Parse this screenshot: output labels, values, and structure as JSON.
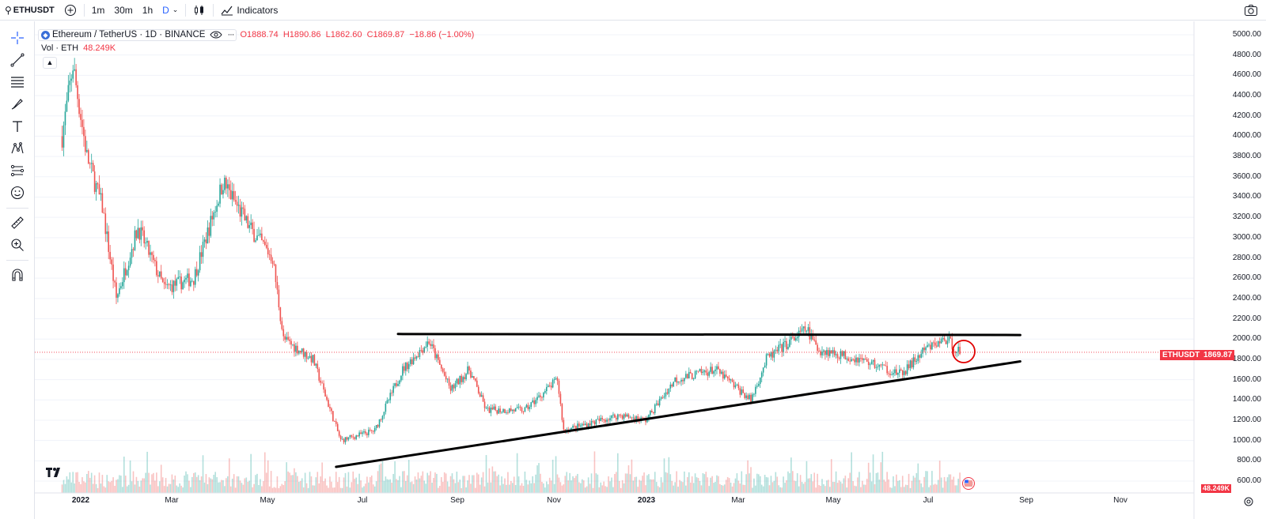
{
  "toolbar": {
    "symbol": "ETHUSDT",
    "intervals": [
      "1m",
      "30m",
      "1h",
      "D"
    ],
    "active_interval": "D",
    "indicators_label": "Indicators"
  },
  "legend": {
    "title": "Ethereum / TetherUS · 1D · BINANCE",
    "open": "O1888.74",
    "high": "H1890.86",
    "low": "L1862.60",
    "close": "C1869.87",
    "change": "−18.86 (−1.00%)",
    "vol_label": "Vol · ETH",
    "vol_value": "48.249K"
  },
  "price_axis": {
    "ticks": [
      "5000.00",
      "4800.00",
      "4600.00",
      "4400.00",
      "4200.00",
      "4000.00",
      "3800.00",
      "3600.00",
      "3400.00",
      "3200.00",
      "3000.00",
      "2800.00",
      "2600.00",
      "2400.00",
      "2200.00",
      "2000.00",
      "1800.00",
      "1600.00",
      "1400.00",
      "1200.00",
      "1000.00",
      "800.00",
      "600.00"
    ],
    "last_price": "1869.87",
    "symbol_badge": "ETHUSDT",
    "volume_badge": "48.249K"
  },
  "time_axis": {
    "ticks": [
      "2022",
      "Mar",
      "May",
      "Jul",
      "Sep",
      "Nov",
      "2023",
      "Mar",
      "May",
      "Jul",
      "Sep",
      "Nov"
    ]
  },
  "colors": {
    "up": "#26a69a",
    "down": "#ef5350",
    "accent": "#2962ff",
    "badge": "#f23645",
    "trendline": "#000000"
  },
  "chart_data": {
    "type": "candlestick",
    "symbol": "ETHUSDT",
    "interval": "1D",
    "exchange": "BINANCE",
    "last": {
      "open": 1888.74,
      "high": 1890.86,
      "low": 1862.6,
      "close": 1869.87
    },
    "ylim": [
      600,
      5000
    ],
    "x_range": [
      "2021-12-20",
      "2023-11-30"
    ],
    "trendlines": [
      {
        "name": "resistance",
        "points": [
          [
            "2022-07-25",
            2050
          ],
          [
            "2023-08-31",
            2040
          ]
        ]
      },
      {
        "name": "support",
        "points": [
          [
            "2022-06-15",
            740
          ],
          [
            "2023-08-31",
            1780
          ]
        ]
      }
    ],
    "price_path": [
      [
        "2021-12-20",
        4000
      ],
      [
        "2021-12-27",
        4700
      ],
      [
        "2022-01-05",
        3800
      ],
      [
        "2022-01-15",
        3300
      ],
      [
        "2022-01-24",
        2400
      ],
      [
        "2022-02-07",
        3100
      ],
      [
        "2022-02-24",
        2500
      ],
      [
        "2022-03-15",
        2600
      ],
      [
        "2022-04-03",
        3550
      ],
      [
        "2022-04-20",
        3100
      ],
      [
        "2022-05-05",
        2800
      ],
      [
        "2022-05-12",
        2000
      ],
      [
        "2022-05-31",
        1800
      ],
      [
        "2022-06-18",
        1000
      ],
      [
        "2022-07-10",
        1100
      ],
      [
        "2022-07-28",
        1700
      ],
      [
        "2022-08-14",
        1980
      ],
      [
        "2022-08-28",
        1500
      ],
      [
        "2022-09-09",
        1700
      ],
      [
        "2022-09-20",
        1300
      ],
      [
        "2022-10-15",
        1300
      ],
      [
        "2022-11-05",
        1600
      ],
      [
        "2022-11-09",
        1100
      ],
      [
        "2022-12-15",
        1250
      ],
      [
        "2023-01-01",
        1200
      ],
      [
        "2023-01-20",
        1600
      ],
      [
        "2023-02-15",
        1700
      ],
      [
        "2023-03-10",
        1400
      ],
      [
        "2023-03-20",
        1800
      ],
      [
        "2023-04-15",
        2100
      ],
      [
        "2023-04-22",
        1900
      ],
      [
        "2023-05-20",
        1800
      ],
      [
        "2023-06-15",
        1650
      ],
      [
        "2023-07-01",
        1900
      ],
      [
        "2023-07-14",
        2000
      ],
      [
        "2023-07-23",
        1870
      ]
    ]
  }
}
